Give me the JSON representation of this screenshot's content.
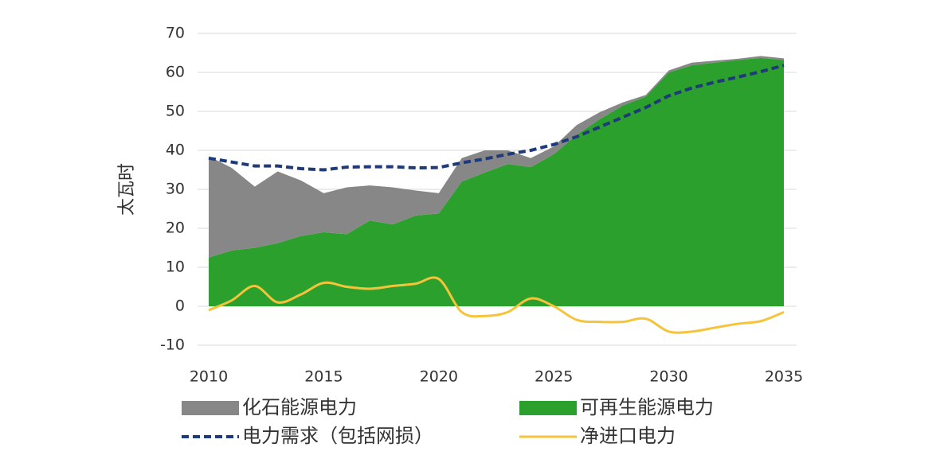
{
  "chart_data": {
    "type": "area",
    "y_label": "太瓦时",
    "x": [
      2010,
      2011,
      2012,
      2013,
      2014,
      2015,
      2016,
      2017,
      2018,
      2019,
      2020,
      2021,
      2022,
      2023,
      2024,
      2025,
      2026,
      2027,
      2028,
      2029,
      2030,
      2031,
      2032,
      2033,
      2034,
      2035
    ],
    "xlim": [
      2010,
      2035
    ],
    "xticks": [
      2010,
      2015,
      2020,
      2025,
      2030,
      2035
    ],
    "ylim": [
      -10,
      70
    ],
    "yticks": [
      -10,
      0,
      10,
      20,
      30,
      40,
      50,
      60,
      70
    ],
    "grid": true,
    "series": [
      {
        "name": "化石能源电力",
        "color": "#878787",
        "kind": "area",
        "stacked": true,
        "values": [
          26,
          21.2,
          15.7,
          18.4,
          14.3,
          10,
          12,
          9,
          9.5,
          6.4,
          5.2,
          6,
          5.7,
          3.5,
          2.3,
          2,
          2.5,
          1.8,
          0.8,
          0.4,
          0.5,
          0.7,
          0.5,
          0.3,
          0.5,
          0.4
        ]
      },
      {
        "name": "可再生能源电力",
        "color": "#2ca02c",
        "kind": "area",
        "stacked": true,
        "values": [
          12.5,
          14.3,
          15,
          16.2,
          18,
          19,
          18.5,
          22,
          21,
          23.3,
          23.8,
          32,
          34.3,
          36.5,
          35.7,
          39,
          44,
          48,
          51.5,
          53.8,
          60,
          61.8,
          62.5,
          63.2,
          63.7,
          63.2
        ]
      },
      {
        "name": "电力需求（包括网损）",
        "color": "#1f3a7a",
        "kind": "line",
        "dashed": true,
        "values": [
          38,
          37,
          36,
          36,
          35.3,
          35,
          35.7,
          35.8,
          35.8,
          35.5,
          35.6,
          36.8,
          37.8,
          39,
          40,
          41.5,
          43.5,
          46,
          48.5,
          51,
          54,
          56,
          57.5,
          58.8,
          60.2,
          61.8
        ]
      },
      {
        "name": "净进口电力",
        "color": "#f5c43a",
        "kind": "line",
        "smooth": true,
        "values": [
          -1,
          1.5,
          5.2,
          1,
          3,
          6,
          5,
          4.5,
          5.2,
          5.8,
          7,
          -1.5,
          -2.5,
          -1.5,
          2,
          0,
          -3.5,
          -4,
          -4,
          -3.2,
          -6.5,
          -6.5,
          -5.5,
          -4.5,
          -3.8,
          -1.5
        ]
      }
    ]
  }
}
